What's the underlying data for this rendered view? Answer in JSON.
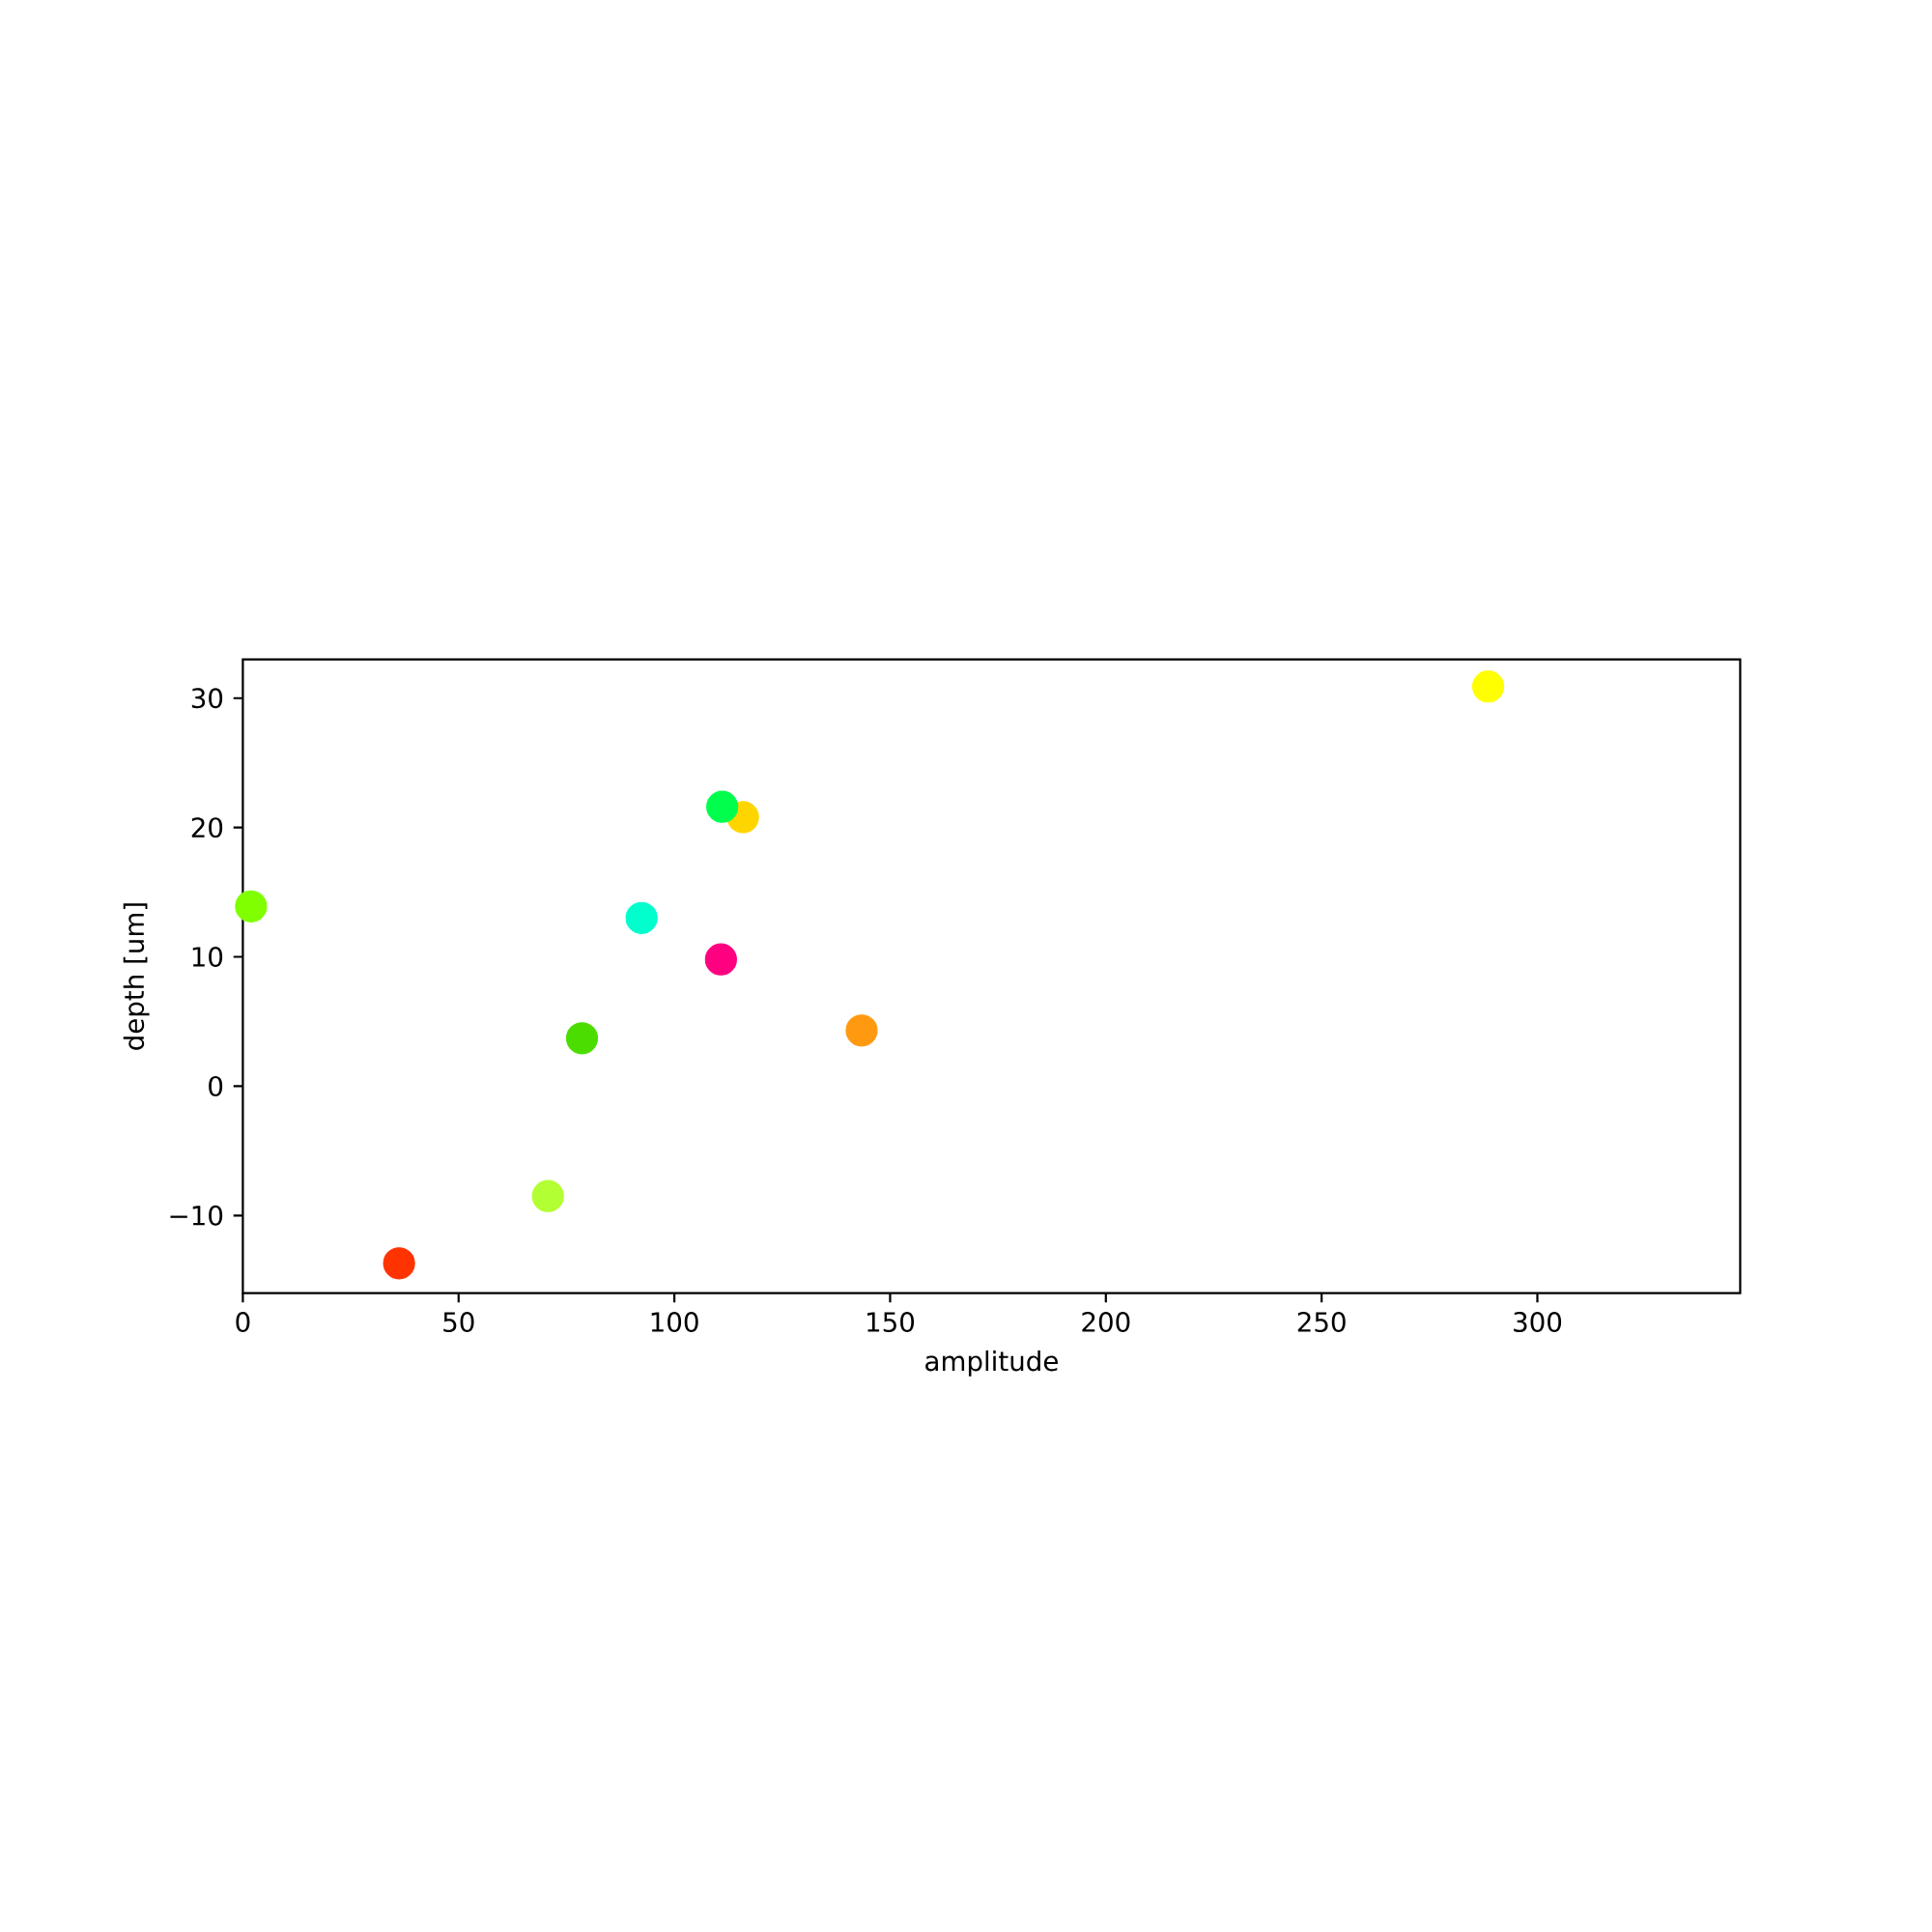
{
  "chart_data": {
    "type": "scatter",
    "xlabel": "amplitude",
    "ylabel": "depth [um]",
    "x": [
      1.9,
      36.2,
      70.7,
      78.6,
      92.4,
      110.8,
      115.9,
      111.1,
      143.4,
      288.6
    ],
    "values": [
      13.9,
      -13.7,
      -8.5,
      3.7,
      13.0,
      9.8,
      20.8,
      21.6,
      4.3,
      30.9
    ],
    "colors": [
      "#7fff00",
      "#ff3300",
      "#b2ff33",
      "#4cdd00",
      "#00ffcc",
      "#ff0080",
      "#ffd500",
      "#00ff4c",
      "#ff9a10",
      "#ffff00"
    ],
    "marker": "circle",
    "xlim": [
      0,
      347
    ],
    "ylim": [
      -16,
      33
    ],
    "xticks": [
      0,
      50,
      100,
      150,
      200,
      250,
      300
    ],
    "yticks": [
      {
        "value": -10,
        "label": "−10"
      },
      0,
      10,
      20,
      30
    ]
  }
}
